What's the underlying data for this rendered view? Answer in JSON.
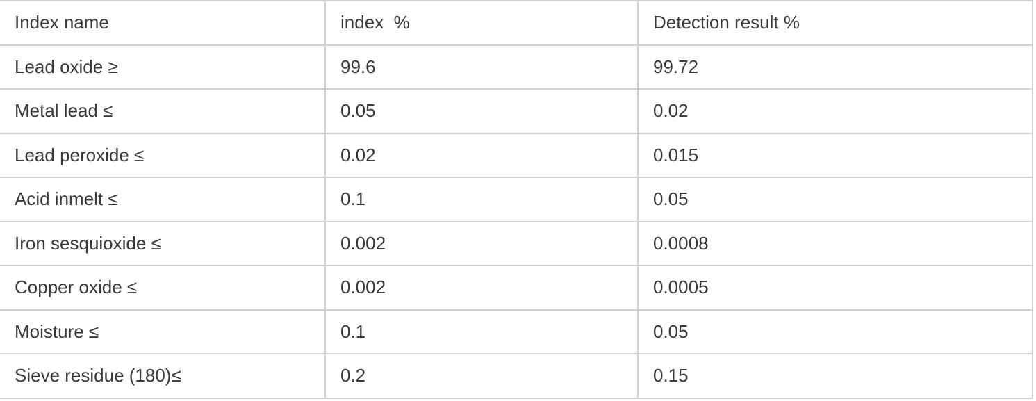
{
  "table": {
    "title": "product-specification-table",
    "header": {
      "index_name": "Index name",
      "index_pct": "index  %",
      "detection_result_pct": "Detection result %"
    },
    "rows": [
      {
        "name": "Lead oxide ≥",
        "index": "99.6",
        "result": "99.72"
      },
      {
        "name": "Metal lead ≤",
        "index": "0.05",
        "result": "0.02"
      },
      {
        "name": "Lead peroxide ≤",
        "index": "0.02",
        "result": "0.015"
      },
      {
        "name": "Acid inmelt ≤",
        "index": "0.1",
        "result": "0.05"
      },
      {
        "name": "Iron sesquioxide ≤",
        "index": "0.002",
        "result": "0.0008"
      },
      {
        "name": "Copper oxide ≤",
        "index": "0.002",
        "result": "0.0005"
      },
      {
        "name": "Moisture ≤",
        "index": "0.1",
        "result": "0.05"
      },
      {
        "name": "Sieve residue (180)≤",
        "index": "0.2",
        "result": "0.15"
      }
    ],
    "colors": {
      "border": "#d0d0d0",
      "text": "#3a3a3a",
      "background": "#ffffff"
    }
  }
}
